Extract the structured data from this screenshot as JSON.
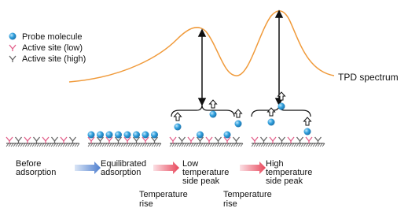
{
  "legend": {
    "probe": "Probe molecule",
    "low": "Active site (low)",
    "high": "Active site (high)"
  },
  "spectrum_label": "TPD spectrum",
  "stages": [
    {
      "lines": [
        "Before",
        "adsorption"
      ]
    },
    {
      "lines": [
        "Equilibrated",
        "adsorption"
      ]
    },
    {
      "lines": [
        "Low",
        "temperature",
        "side peak"
      ]
    },
    {
      "lines": [
        "High",
        "temperature",
        "side peak"
      ]
    }
  ],
  "steps": [
    {
      "lines": [
        "Temperature",
        "rise"
      ]
    },
    {
      "lines": [
        "Temperature",
        "rise"
      ]
    }
  ]
}
